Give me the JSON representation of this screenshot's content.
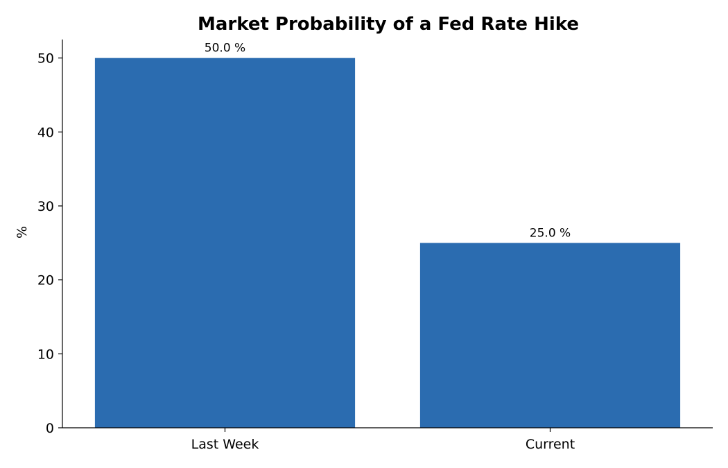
{
  "chart_data": {
    "type": "bar",
    "title": "Market Probability of a Fed Rate Hike",
    "xlabel": "",
    "ylabel": "%",
    "categories": [
      "Last Week",
      "Current"
    ],
    "values": [
      50.0,
      25.0
    ],
    "data_labels": [
      "50.0 %",
      "25.0 %"
    ],
    "ylim": [
      0,
      52.5
    ],
    "yticks": [
      0,
      10,
      20,
      30,
      40,
      50
    ],
    "ytick_labels": [
      "0",
      "10",
      "20",
      "30",
      "40",
      "50"
    ],
    "grid": false,
    "legend": "none",
    "bar_color": "#2b6cb0"
  }
}
